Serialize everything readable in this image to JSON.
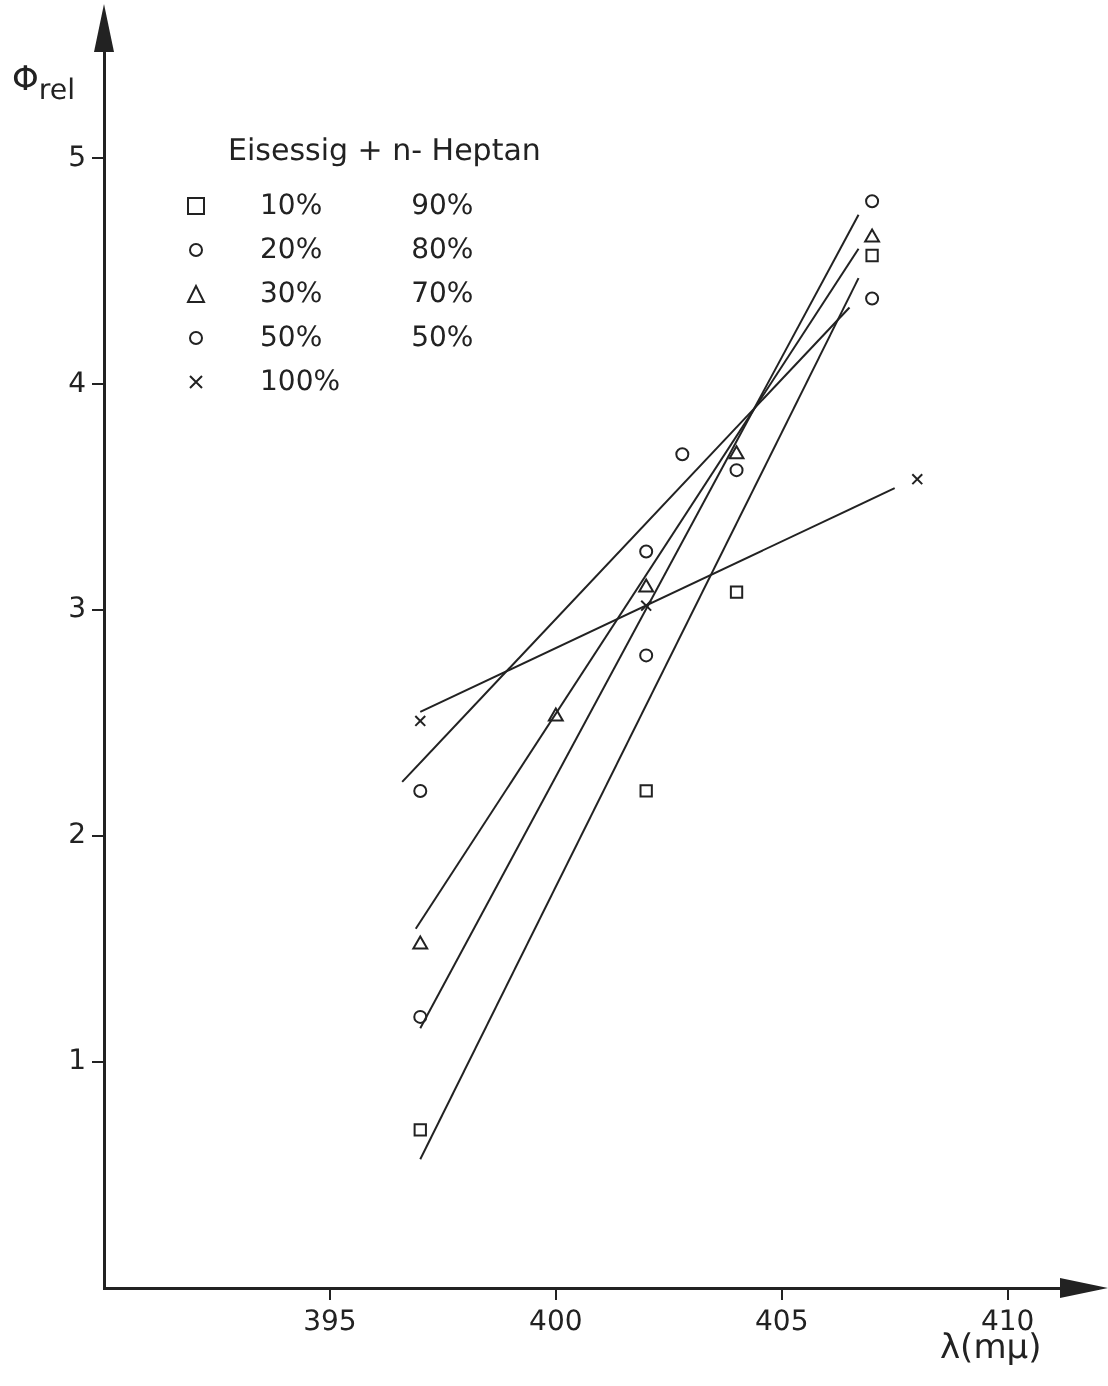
{
  "chart_data": {
    "type": "scatter",
    "xlabel": "λ(mμ)",
    "ylabel": "Φ$_{rel}$",
    "legend_title": "Eisessig + n- Heptan",
    "legend": "top left",
    "grid": false,
    "xlim": [
      390,
      412
    ],
    "xticks": [
      395,
      400,
      405,
      410
    ],
    "ylim": [
      0,
      5.6
    ],
    "yticks": [
      1,
      2,
      3,
      4,
      5
    ],
    "series": [
      {
        "name": "10%          90%",
        "color": "#222222",
        "marker": "square",
        "x": [
          397,
          402,
          404,
          407
        ],
        "values": [
          0.7,
          2.2,
          3.08,
          4.57
        ]
      },
      {
        "name": "20%          80%",
        "color": "#222222",
        "marker": "circle",
        "x": [
          397,
          402,
          404,
          407
        ],
        "values": [
          1.2,
          2.8,
          3.62,
          4.81
        ]
      },
      {
        "name": "30%          70%",
        "color": "#222222",
        "marker": "triangle",
        "x": [
          397,
          400,
          402,
          404,
          407
        ],
        "values": [
          1.52,
          2.53,
          3.1,
          3.69,
          4.65
        ]
      },
      {
        "name": "50%          50%",
        "color": "#222222",
        "marker": "circle",
        "x": [
          397,
          402,
          402.8,
          407
        ],
        "values": [
          2.2,
          3.26,
          3.69,
          4.38
        ]
      },
      {
        "name": "100%",
        "color": "#222222",
        "marker": "cross",
        "x": [
          397,
          402,
          408
        ],
        "values": [
          2.51,
          3.02,
          3.58
        ]
      },
      {
        "type": "line",
        "color": "#222222",
        "marker": "none",
        "x": [
          397.0,
          406.7
        ],
        "values": [
          0.57,
          4.47
        ]
      },
      {
        "type": "line",
        "color": "#222222",
        "marker": "none",
        "x": [
          397.0,
          406.7
        ],
        "values": [
          1.15,
          4.75
        ]
      },
      {
        "type": "line",
        "color": "#222222",
        "marker": "none",
        "x": [
          396.9,
          406.7
        ],
        "values": [
          1.59,
          4.6
        ]
      },
      {
        "type": "line",
        "color": "#222222",
        "marker": "none",
        "x": [
          396.6,
          406.5
        ],
        "values": [
          2.24,
          4.34
        ]
      },
      {
        "type": "line",
        "color": "#222222",
        "marker": "none",
        "x": [
          397.0,
          407.5
        ],
        "values": [
          2.55,
          3.54
        ]
      }
    ]
  }
}
